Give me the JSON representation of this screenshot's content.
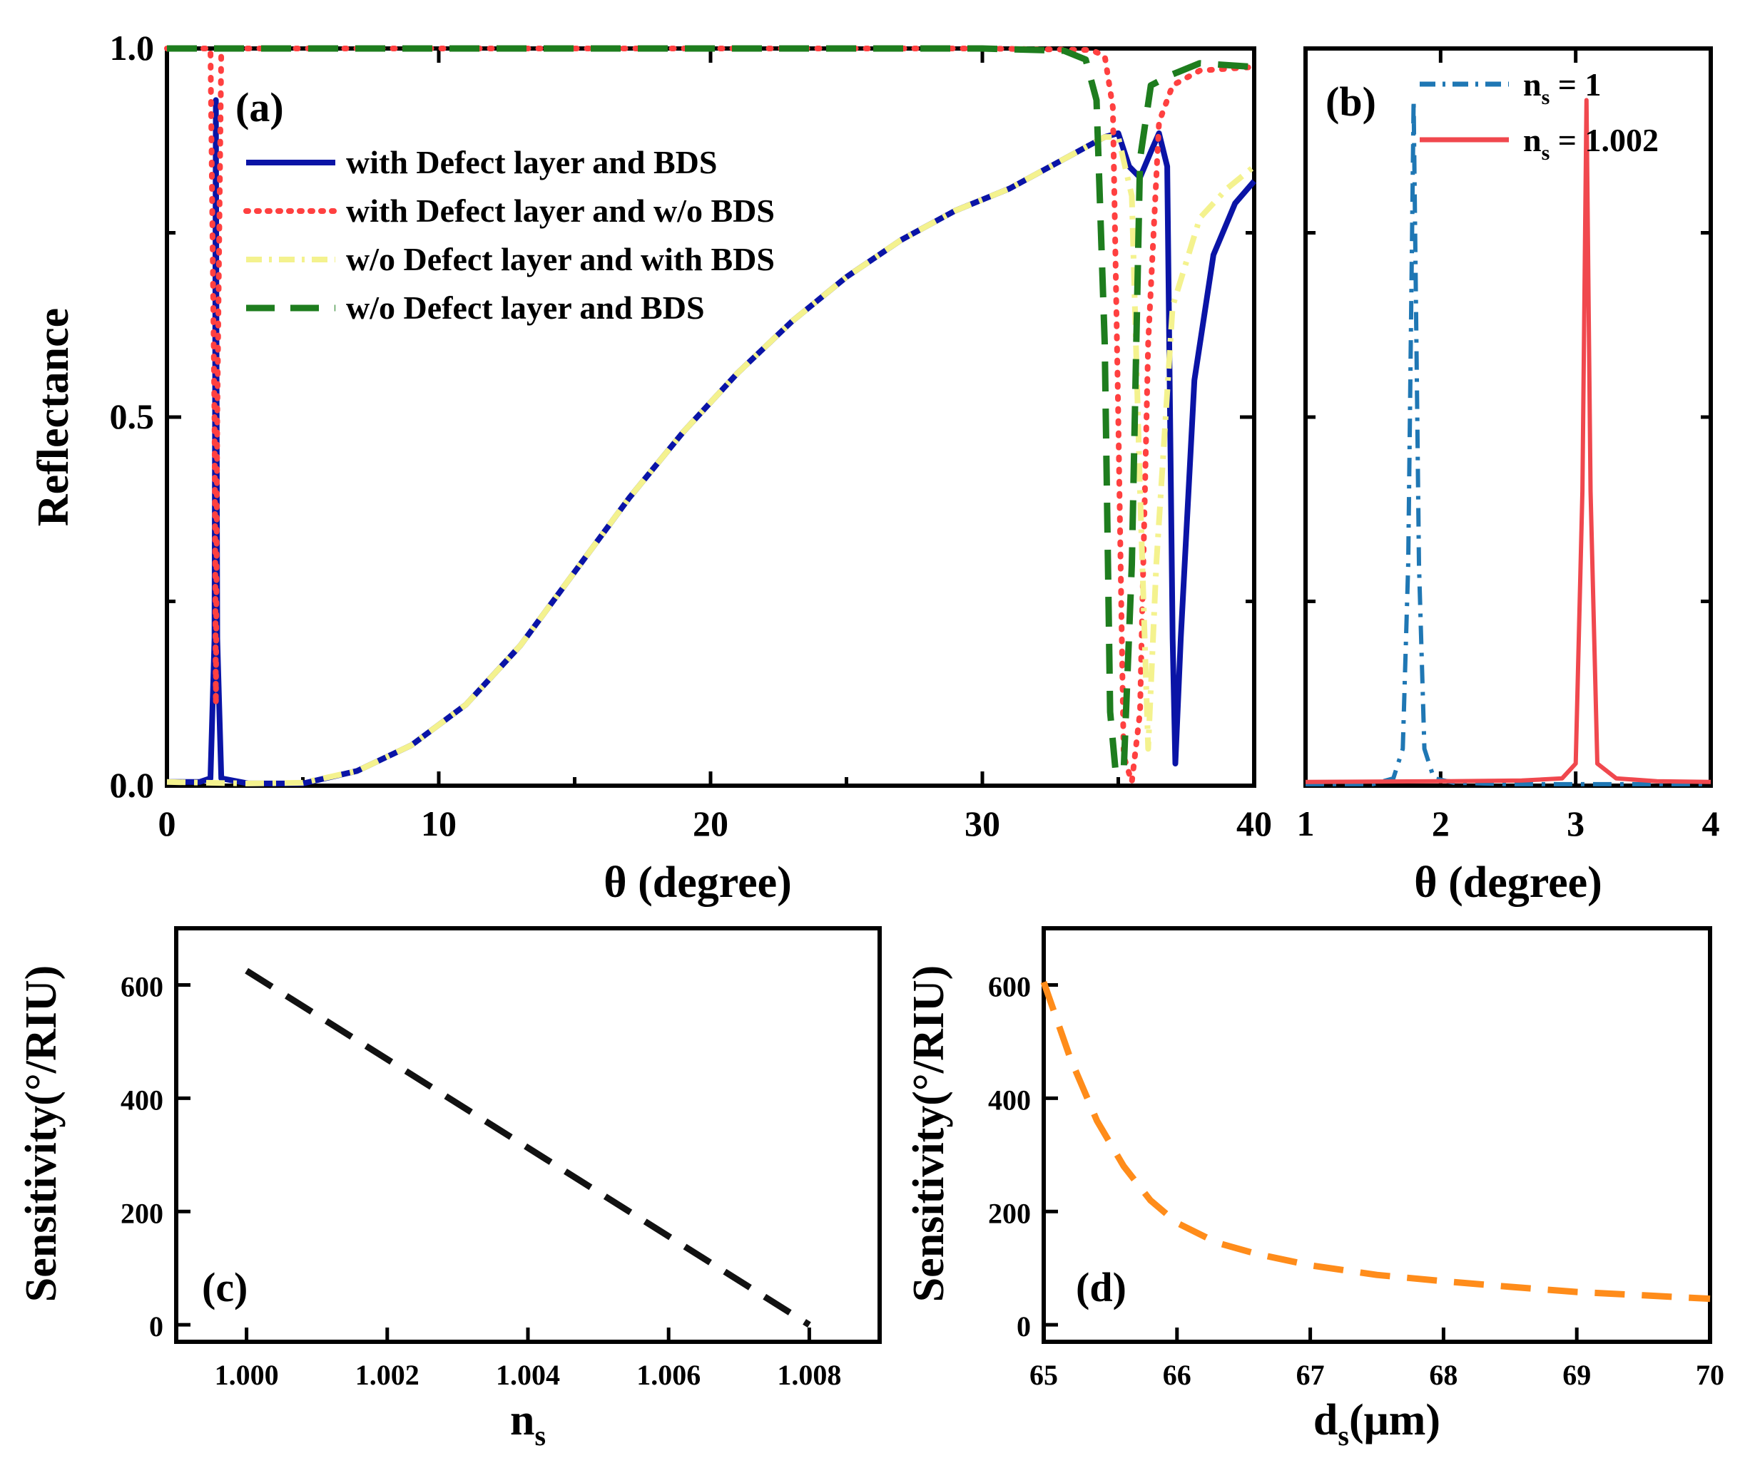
{
  "chart_data": [
    {
      "id": "a",
      "type": "line",
      "panel_label": "(a)",
      "xlabel": "θ (degree)",
      "ylabel": "Reflectance",
      "xlim": [
        0,
        40
      ],
      "ylim": [
        0,
        1
      ],
      "xticks": [
        0,
        10,
        20,
        30,
        40
      ],
      "xtick_labels": [
        "0",
        "10",
        "20",
        "30",
        "40"
      ],
      "yticks": [
        0,
        0.5,
        1
      ],
      "ytick_labels": [
        "0.0",
        "0.5",
        "1.0"
      ],
      "legend_position": "upper-left",
      "series": [
        {
          "name": "with Defect layer and BDS",
          "color": "#0a14a6",
          "dash": "solid",
          "points": [
            [
              0,
              0.005
            ],
            [
              1.2,
              0.005
            ],
            [
              1.6,
              0.01
            ],
            [
              1.75,
              0.2
            ],
            [
              1.8,
              0.93
            ],
            [
              1.85,
              0.2
            ],
            [
              2.0,
              0.01
            ],
            [
              3,
              0.003
            ],
            [
              5,
              0.003
            ],
            [
              7,
              0.02
            ],
            [
              9,
              0.055
            ],
            [
              11,
              0.11
            ],
            [
              13,
              0.19
            ],
            [
              15,
              0.29
            ],
            [
              17,
              0.39
            ],
            [
              19,
              0.48
            ],
            [
              21,
              0.56
            ],
            [
              23,
              0.63
            ],
            [
              25,
              0.69
            ],
            [
              27,
              0.74
            ],
            [
              29,
              0.78
            ],
            [
              31,
              0.81
            ],
            [
              33,
              0.85
            ],
            [
              34.5,
              0.88
            ],
            [
              35,
              0.885
            ],
            [
              35.4,
              0.84
            ],
            [
              35.8,
              0.825
            ],
            [
              36.2,
              0.86
            ],
            [
              36.5,
              0.885
            ],
            [
              36.8,
              0.84
            ],
            [
              37,
              0.2
            ],
            [
              37.1,
              0.03
            ],
            [
              37.3,
              0.2
            ],
            [
              37.8,
              0.55
            ],
            [
              38.5,
              0.72
            ],
            [
              39.3,
              0.79
            ],
            [
              40,
              0.82
            ]
          ]
        },
        {
          "name": "with Defect layer and w/o BDS",
          "color": "#ff4040",
          "dash": "dotted",
          "points": [
            [
              0,
              1
            ],
            [
              1.6,
              1
            ],
            [
              1.75,
              0.5
            ],
            [
              1.8,
              0.11
            ],
            [
              1.85,
              0.5
            ],
            [
              2.0,
              1
            ],
            [
              10,
              1
            ],
            [
              20,
              1
            ],
            [
              30,
              1
            ],
            [
              34,
              0.998
            ],
            [
              34.5,
              0.99
            ],
            [
              34.8,
              0.92
            ],
            [
              35.0,
              0.5
            ],
            [
              35.2,
              0.04
            ],
            [
              35.5,
              0.005
            ],
            [
              35.8,
              0.1
            ],
            [
              36.1,
              0.6
            ],
            [
              36.5,
              0.9
            ],
            [
              37,
              0.95
            ],
            [
              38,
              0.97
            ],
            [
              40,
              0.975
            ]
          ]
        },
        {
          "name": "w/o Defect layer and with BDS",
          "color": "#f4f28e",
          "dash": "dashdot",
          "points": [
            [
              0,
              0.005
            ],
            [
              1.5,
              0.004
            ],
            [
              3,
              0.003
            ],
            [
              5,
              0.004
            ],
            [
              7,
              0.02
            ],
            [
              9,
              0.055
            ],
            [
              11,
              0.11
            ],
            [
              13,
              0.19
            ],
            [
              15,
              0.29
            ],
            [
              17,
              0.39
            ],
            [
              19,
              0.48
            ],
            [
              21,
              0.56
            ],
            [
              23,
              0.63
            ],
            [
              25,
              0.69
            ],
            [
              27,
              0.74
            ],
            [
              29,
              0.78
            ],
            [
              31,
              0.81
            ],
            [
              33,
              0.85
            ],
            [
              34.5,
              0.88
            ],
            [
              35.0,
              0.88
            ],
            [
              35.5,
              0.8
            ],
            [
              35.8,
              0.4
            ],
            [
              36.1,
              0.05
            ],
            [
              36.4,
              0.3
            ],
            [
              37,
              0.65
            ],
            [
              38,
              0.77
            ],
            [
              39,
              0.81
            ],
            [
              40,
              0.84
            ]
          ]
        },
        {
          "name": "w/o Defect layer and BDS",
          "color": "#1e7d1e",
          "dash": "dashed",
          "points": [
            [
              0,
              1
            ],
            [
              10,
              1
            ],
            [
              20,
              1
            ],
            [
              30,
              1
            ],
            [
              33,
              0.997
            ],
            [
              33.8,
              0.985
            ],
            [
              34.2,
              0.93
            ],
            [
              34.5,
              0.6
            ],
            [
              34.7,
              0.1
            ],
            [
              34.9,
              0.02
            ],
            [
              35.2,
              0.02
            ],
            [
              35.5,
              0.3
            ],
            [
              35.8,
              0.85
            ],
            [
              36.2,
              0.95
            ],
            [
              37,
              0.965
            ],
            [
              38,
              0.98
            ],
            [
              40,
              0.975
            ]
          ]
        }
      ]
    },
    {
      "id": "b",
      "type": "line",
      "panel_label": "(b)",
      "xlabel": "θ (degree)",
      "xlim": [
        1,
        4
      ],
      "ylim": [
        0,
        1
      ],
      "xticks": [
        1,
        2,
        3,
        4
      ],
      "xtick_labels": [
        "1",
        "2",
        "3",
        "4"
      ],
      "legend_position": "top-right",
      "series": [
        {
          "name": "n",
          "name_sub": "s",
          "name_value": " = 1",
          "color": "#1f77b4",
          "dash": "dashdot",
          "points": [
            [
              1,
              0.002
            ],
            [
              1.5,
              0.002
            ],
            [
              1.65,
              0.01
            ],
            [
              1.72,
              0.05
            ],
            [
              1.76,
              0.3
            ],
            [
              1.8,
              0.93
            ],
            [
              1.84,
              0.3
            ],
            [
              1.88,
              0.05
            ],
            [
              1.95,
              0.01
            ],
            [
              2.1,
              0.004
            ],
            [
              2.5,
              0.002
            ],
            [
              4,
              0.002
            ]
          ]
        },
        {
          "name": "n",
          "name_sub": "s",
          "name_value": " = 1.002",
          "color": "#f0484e",
          "dash": "solid",
          "points": [
            [
              1,
              0.005
            ],
            [
              2.0,
              0.006
            ],
            [
              2.6,
              0.007
            ],
            [
              2.9,
              0.01
            ],
            [
              3.0,
              0.03
            ],
            [
              3.05,
              0.4
            ],
            [
              3.08,
              0.93
            ],
            [
              3.11,
              0.4
            ],
            [
              3.16,
              0.03
            ],
            [
              3.3,
              0.01
            ],
            [
              3.6,
              0.006
            ],
            [
              4,
              0.005
            ]
          ]
        }
      ]
    },
    {
      "id": "c",
      "type": "line",
      "panel_label": "(c)",
      "xlabel": "n",
      "xlabel_sub": "s",
      "ylabel": "Sensitivity(°/RIU)",
      "xlim": [
        0.999,
        1.009
      ],
      "ylim": [
        -30,
        700
      ],
      "xticks": [
        1.0,
        1.002,
        1.004,
        1.006,
        1.008
      ],
      "xtick_labels": [
        "1.000",
        "1.002",
        "1.004",
        "1.006",
        "1.008"
      ],
      "yticks": [
        0,
        200,
        400,
        600
      ],
      "ytick_labels": [
        "0",
        "200",
        "400",
        "600"
      ],
      "series": [
        {
          "name": "Sensitivity",
          "color": "#111111",
          "dash": "dashed",
          "points": [
            [
              1.0,
              625
            ],
            [
              1.008,
              0
            ]
          ]
        }
      ]
    },
    {
      "id": "d",
      "type": "line",
      "panel_label": "(d)",
      "xlabel": "d",
      "xlabel_sub": "s",
      "xlabel_tail": "(μm)",
      "ylabel": "Sensitivity(°/RIU)",
      "xlim": [
        65,
        70
      ],
      "ylim": [
        -30,
        700
      ],
      "xticks": [
        65,
        66,
        67,
        68,
        69,
        70
      ],
      "xtick_labels": [
        "65",
        "66",
        "67",
        "68",
        "69",
        "70"
      ],
      "yticks": [
        0,
        200,
        400,
        600
      ],
      "ytick_labels": [
        "0",
        "200",
        "400",
        "600"
      ],
      "series": [
        {
          "name": "Sensitivity",
          "color": "#ff8c1a",
          "dash": "dashed",
          "points": [
            [
              65,
              605
            ],
            [
              65.2,
              470
            ],
            [
              65.4,
              360
            ],
            [
              65.6,
              280
            ],
            [
              65.8,
              220
            ],
            [
              66,
              180
            ],
            [
              66.3,
              145
            ],
            [
              66.6,
              125
            ],
            [
              67,
              105
            ],
            [
              67.5,
              88
            ],
            [
              68,
              77
            ],
            [
              68.5,
              67
            ],
            [
              69,
              58
            ],
            [
              69.5,
              52
            ],
            [
              70,
              46
            ]
          ]
        }
      ]
    }
  ]
}
